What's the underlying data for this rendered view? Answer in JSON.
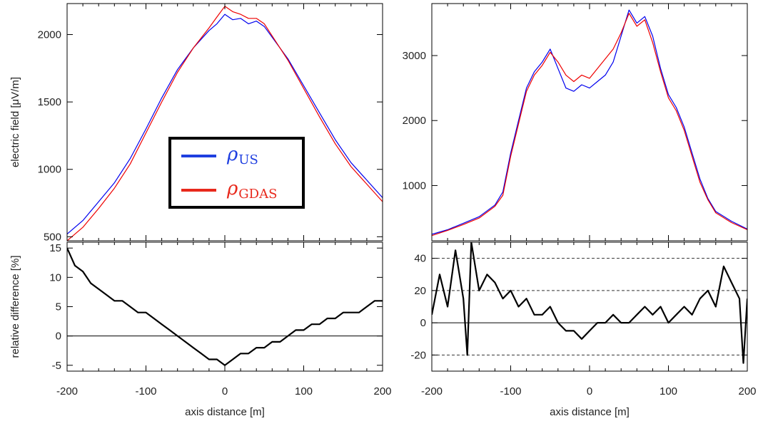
{
  "chart_data": [
    {
      "type": "line",
      "panel": "left-top",
      "ylabel": "electric field [μV/m]",
      "ylim": [
        470,
        2230
      ],
      "xlim": [
        -200,
        200
      ],
      "yticks": [
        500,
        1000,
        1500,
        2000
      ],
      "legend": {
        "placement": "center-left",
        "entries": [
          {
            "symbol": "ρ",
            "sub": "US",
            "color": "#1f3fe0"
          },
          {
            "symbol": "ρ",
            "sub": "GDAS",
            "color": "#e8291c"
          }
        ]
      },
      "series": [
        {
          "color": "#0000ee",
          "x": [
            -200,
            -180,
            -160,
            -140,
            -120,
            -100,
            -80,
            -60,
            -40,
            -20,
            -10,
            0,
            10,
            20,
            30,
            40,
            50,
            60,
            80,
            100,
            120,
            140,
            160,
            180,
            200
          ],
          "values": [
            520,
            620,
            760,
            900,
            1080,
            1300,
            1530,
            1740,
            1900,
            2030,
            2080,
            2150,
            2110,
            2120,
            2080,
            2100,
            2060,
            1980,
            1820,
            1620,
            1420,
            1220,
            1050,
            920,
            790
          ]
        },
        {
          "color": "#ee0000",
          "x": [
            -200,
            -180,
            -160,
            -140,
            -120,
            -100,
            -80,
            -60,
            -40,
            -20,
            -10,
            0,
            10,
            20,
            30,
            40,
            50,
            60,
            80,
            100,
            120,
            140,
            160,
            180,
            200
          ],
          "values": [
            470,
            570,
            710,
            860,
            1040,
            1270,
            1500,
            1720,
            1900,
            2050,
            2130,
            2210,
            2170,
            2150,
            2120,
            2120,
            2080,
            1990,
            1810,
            1600,
            1390,
            1190,
            1020,
            890,
            760
          ]
        }
      ]
    },
    {
      "type": "line",
      "panel": "right-top",
      "ylim": [
        150,
        3800
      ],
      "xlim": [
        -200,
        200
      ],
      "yticks": [
        1000,
        2000,
        3000
      ],
      "series": [
        {
          "color": "#0000ee",
          "x": [
            -200,
            -180,
            -160,
            -140,
            -120,
            -110,
            -100,
            -90,
            -80,
            -70,
            -60,
            -50,
            -40,
            -30,
            -20,
            -10,
            0,
            10,
            20,
            30,
            40,
            50,
            60,
            70,
            80,
            90,
            100,
            110,
            120,
            130,
            140,
            150,
            160,
            180,
            200
          ],
          "values": [
            250,
            320,
            420,
            520,
            700,
            900,
            1500,
            2000,
            2500,
            2750,
            2900,
            3100,
            2800,
            2500,
            2450,
            2550,
            2500,
            2600,
            2700,
            2900,
            3300,
            3700,
            3500,
            3600,
            3300,
            2800,
            2400,
            2200,
            1900,
            1500,
            1100,
            800,
            600,
            450,
            330
          ]
        },
        {
          "color": "#ee0000",
          "x": [
            -200,
            -180,
            -160,
            -140,
            -120,
            -110,
            -100,
            -90,
            -80,
            -70,
            -60,
            -50,
            -40,
            -30,
            -20,
            -10,
            0,
            10,
            20,
            30,
            40,
            50,
            60,
            70,
            80,
            90,
            100,
            110,
            120,
            130,
            140,
            150,
            160,
            180,
            200
          ],
          "values": [
            230,
            310,
            400,
            500,
            680,
            850,
            1450,
            1950,
            2450,
            2700,
            2850,
            3050,
            2900,
            2700,
            2600,
            2700,
            2650,
            2800,
            2950,
            3100,
            3350,
            3650,
            3450,
            3550,
            3200,
            2750,
            2350,
            2150,
            1850,
            1450,
            1050,
            780,
            580,
            430,
            320
          ]
        }
      ]
    },
    {
      "type": "line",
      "panel": "left-bottom",
      "xlabel": "axis distance [m]",
      "ylabel": "relative difference [%]",
      "ylim": [
        -6,
        16
      ],
      "xlim": [
        -200,
        200
      ],
      "yticks": [
        -5,
        0,
        5,
        10,
        15
      ],
      "xticks": [
        -200,
        -100,
        0,
        100,
        200
      ],
      "reference_lines": [
        0
      ],
      "series": [
        {
          "color": "#000000",
          "x": [
            -200,
            -190,
            -180,
            -170,
            -160,
            -150,
            -140,
            -130,
            -120,
            -110,
            -100,
            -90,
            -80,
            -70,
            -60,
            -50,
            -40,
            -30,
            -20,
            -10,
            0,
            10,
            20,
            30,
            40,
            50,
            60,
            70,
            80,
            90,
            100,
            110,
            120,
            130,
            140,
            150,
            160,
            170,
            180,
            190,
            200
          ],
          "values": [
            15,
            12,
            11,
            9,
            8,
            7,
            6,
            6,
            5,
            4,
            4,
            3,
            2,
            1,
            0,
            -1,
            -2,
            -3,
            -4,
            -4,
            -5,
            -4,
            -3,
            -3,
            -2,
            -2,
            -1,
            -1,
            0,
            1,
            1,
            2,
            2,
            3,
            3,
            4,
            4,
            4,
            5,
            6,
            6
          ]
        }
      ]
    },
    {
      "type": "line",
      "panel": "right-bottom",
      "xlabel": "axis distance [m]",
      "ylim": [
        -30,
        50
      ],
      "xlim": [
        -200,
        200
      ],
      "yticks": [
        -20,
        0,
        20,
        40
      ],
      "xticks": [
        -200,
        -100,
        0,
        100,
        200
      ],
      "reference_lines": [
        0
      ],
      "dashed_lines": [
        -20,
        20,
        40
      ],
      "series": [
        {
          "color": "#000000",
          "x": [
            -200,
            -190,
            -180,
            -170,
            -160,
            -155,
            -150,
            -140,
            -130,
            -120,
            -110,
            -100,
            -90,
            -80,
            -70,
            -60,
            -50,
            -40,
            -30,
            -20,
            -10,
            0,
            10,
            20,
            30,
            40,
            50,
            60,
            70,
            80,
            90,
            100,
            110,
            120,
            130,
            140,
            150,
            160,
            170,
            180,
            190,
            195,
            200
          ],
          "values": [
            5,
            30,
            10,
            45,
            15,
            -20,
            50,
            20,
            30,
            25,
            15,
            20,
            10,
            15,
            5,
            5,
            10,
            0,
            -5,
            -5,
            -10,
            -5,
            0,
            0,
            5,
            0,
            0,
            5,
            10,
            5,
            10,
            0,
            5,
            10,
            5,
            15,
            20,
            10,
            35,
            25,
            15,
            -25,
            15
          ]
        }
      ]
    }
  ]
}
